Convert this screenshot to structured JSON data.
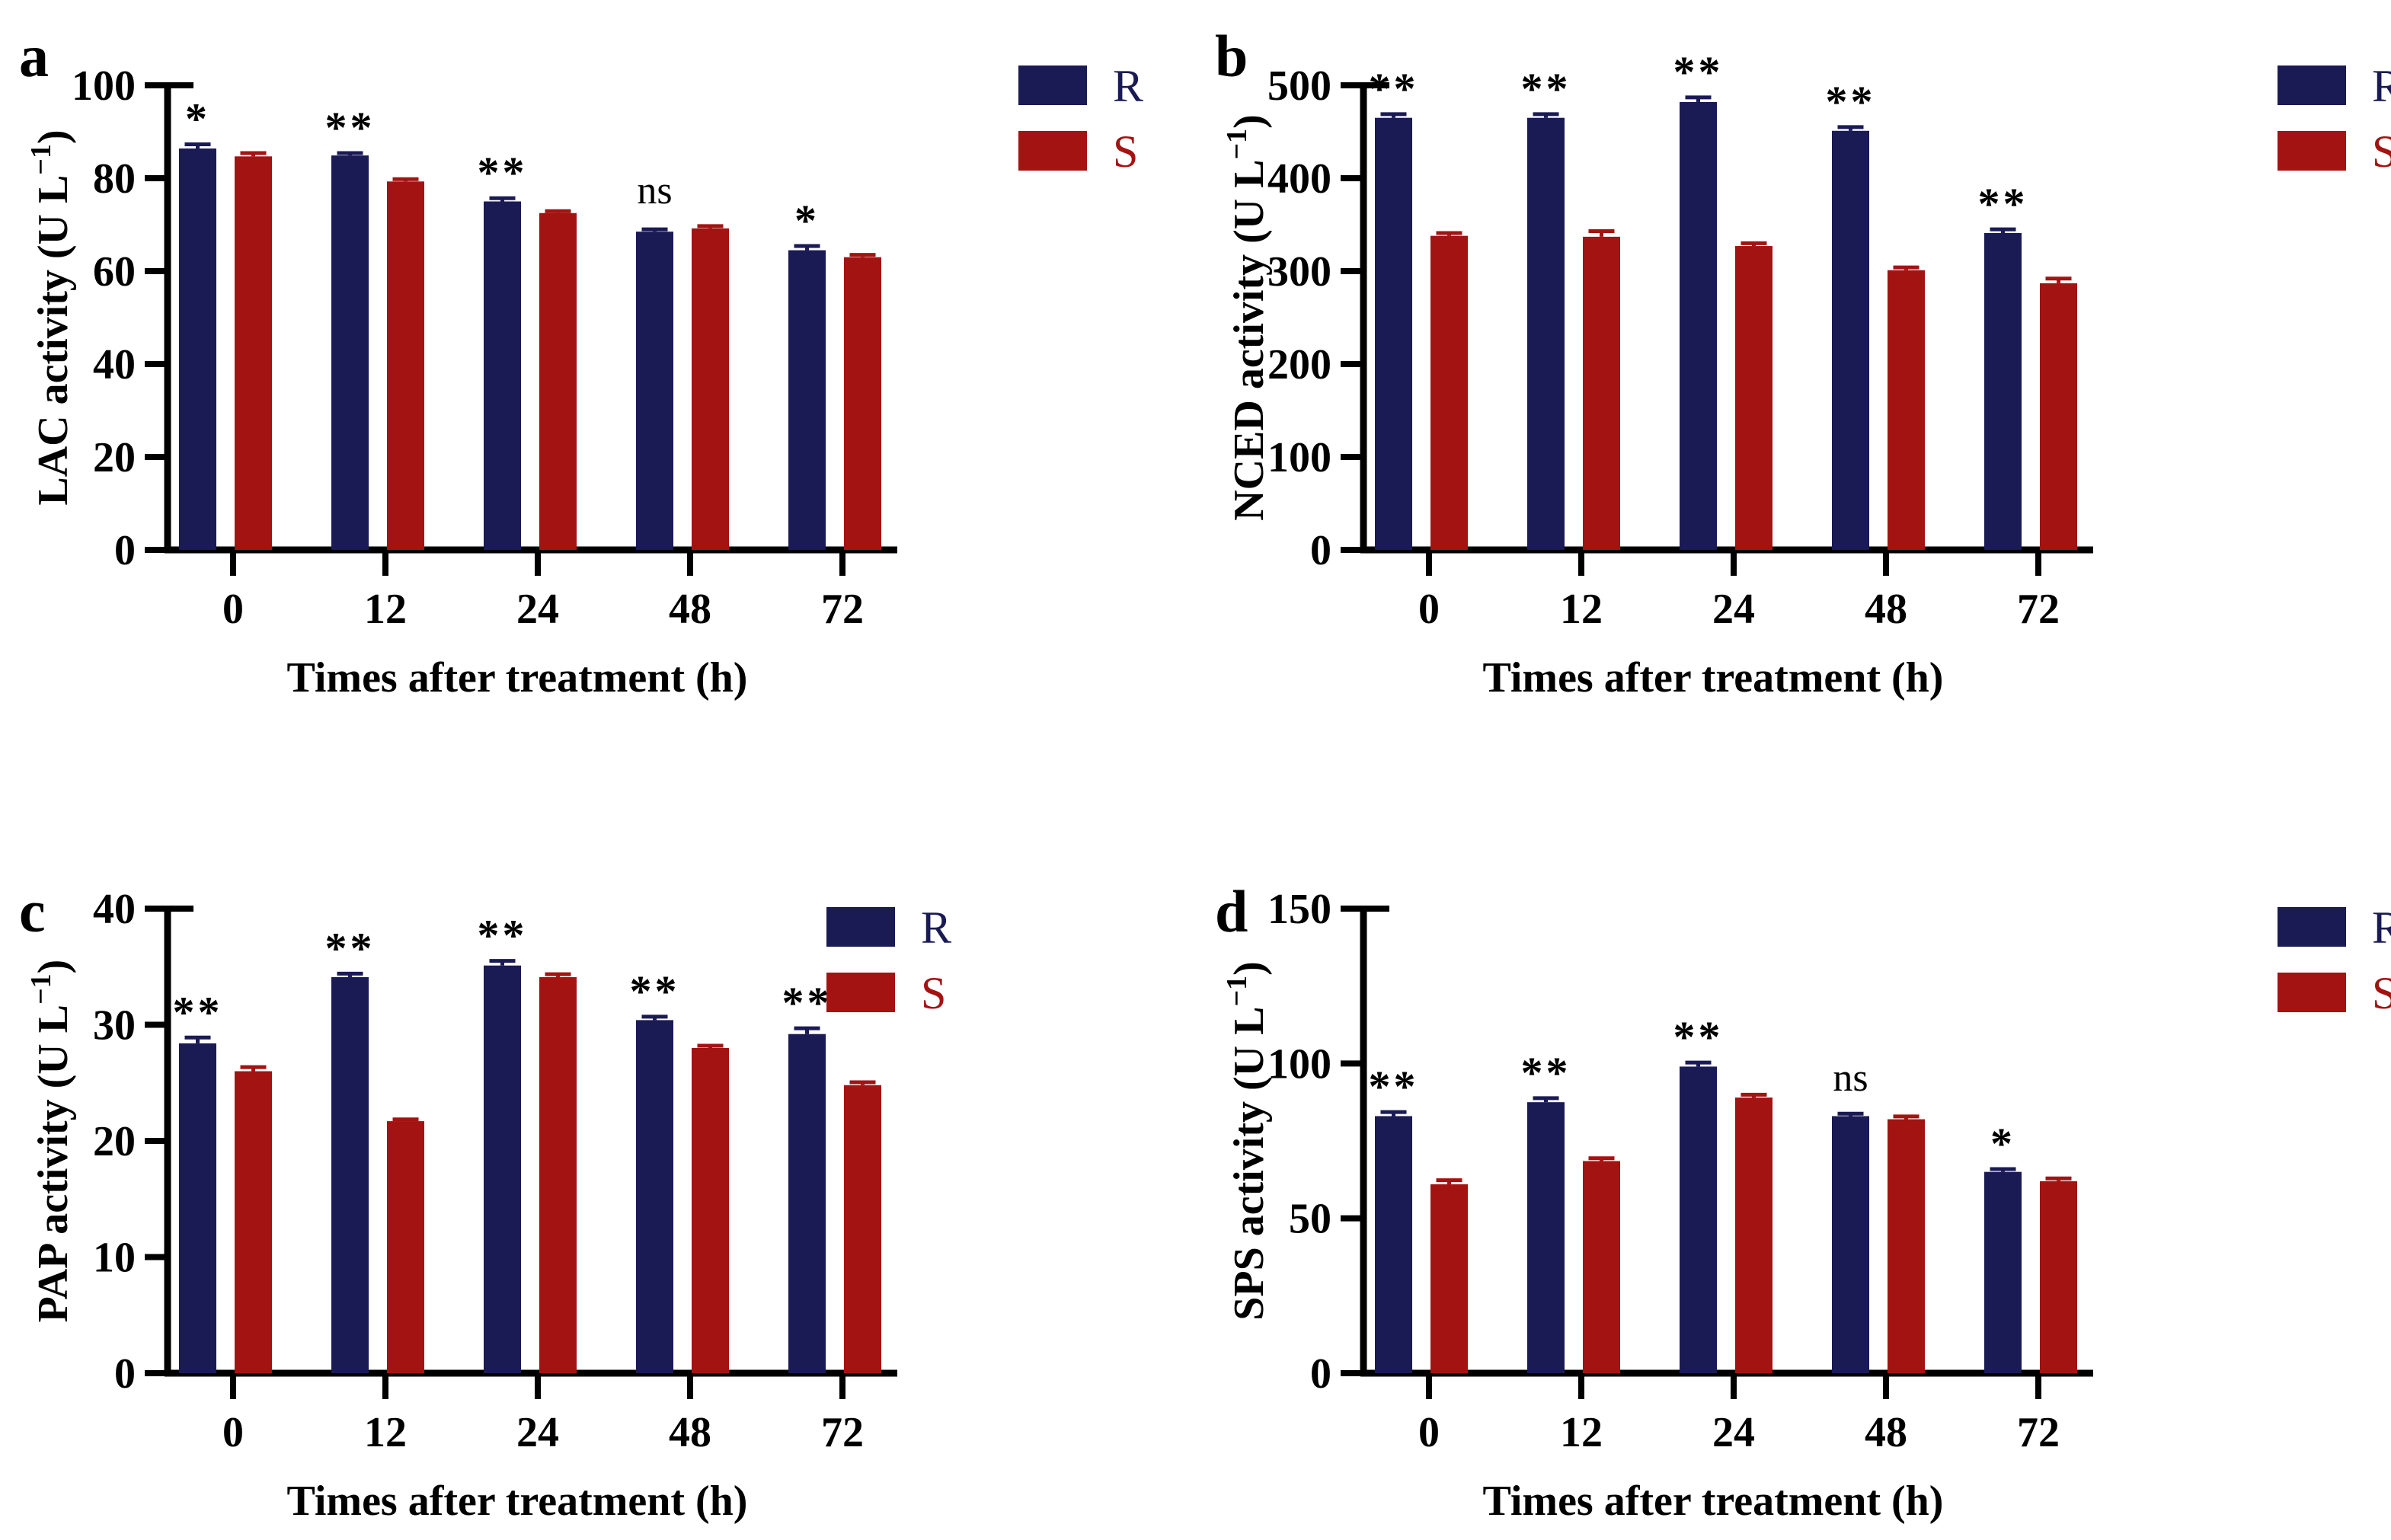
{
  "figure": {
    "background": "#ffffff",
    "xlabel": "Times after treatment (h)",
    "x_categories": [
      "0",
      "12",
      "24",
      "48",
      "72"
    ],
    "legend": [
      {
        "label": "R",
        "color": "#1A1A55"
      },
      {
        "label": "S",
        "color": "#A31312"
      }
    ],
    "colors": {
      "R": "#1A1A55",
      "S": "#A31312",
      "axis": "#000000",
      "text": "#000000"
    }
  },
  "chart_data": [
    {
      "panel": "a",
      "type": "bar",
      "ylabel": "LAC activity (U L⁻¹)",
      "xlabel": "Times after treatment (h)",
      "ylim": [
        0,
        100
      ],
      "yticks": [
        0,
        20,
        40,
        60,
        80,
        100
      ],
      "categories": [
        "0",
        "12",
        "24",
        "48",
        "72"
      ],
      "series": [
        {
          "name": "R",
          "color": "#1A1A55",
          "values": [
            86.4,
            84.9,
            75.0,
            68.5,
            64.5
          ],
          "errors": [
            0.9,
            0.5,
            0.7,
            0.5,
            0.9
          ]
        },
        {
          "name": "S",
          "color": "#A31312",
          "values": [
            84.7,
            79.3,
            72.5,
            69.2,
            63.0
          ],
          "errors": [
            0.7,
            0.5,
            0.4,
            0.5,
            0.5
          ]
        }
      ],
      "significance": [
        "*",
        "**",
        "**",
        "ns",
        "*"
      ],
      "legend_position": "right"
    },
    {
      "panel": "b",
      "type": "bar",
      "ylabel": "NCED activity (U L⁻¹)",
      "xlabel": "Times after treatment (h)",
      "ylim": [
        0,
        500
      ],
      "yticks": [
        0,
        100,
        200,
        300,
        400,
        500
      ],
      "categories": [
        "0",
        "12",
        "24",
        "48",
        "72"
      ],
      "series": [
        {
          "name": "R",
          "color": "#1A1A55",
          "values": [
            465,
            465,
            482,
            451,
            341
          ],
          "errors": [
            4,
            4,
            5,
            4,
            4
          ]
        },
        {
          "name": "S",
          "color": "#A31312",
          "values": [
            338,
            337,
            327,
            301,
            287
          ],
          "errors": [
            3,
            6,
            3,
            3,
            5
          ]
        }
      ],
      "significance": [
        "**",
        "**",
        "**",
        "**",
        "**"
      ],
      "legend_position": "right"
    },
    {
      "panel": "c",
      "type": "bar",
      "ylabel": "PAP activity (U L⁻¹)",
      "xlabel": "Times after treatment (h)",
      "ylim": [
        0,
        40
      ],
      "yticks": [
        0,
        10,
        20,
        30,
        40
      ],
      "categories": [
        "0",
        "12",
        "24",
        "48",
        "72"
      ],
      "series": [
        {
          "name": "R",
          "color": "#1A1A55",
          "values": [
            28.4,
            34.1,
            35.1,
            30.4,
            29.2
          ],
          "errors": [
            0.5,
            0.3,
            0.4,
            0.3,
            0.5
          ]
        },
        {
          "name": "S",
          "color": "#A31312",
          "values": [
            26.0,
            21.7,
            34.1,
            28.0,
            24.8
          ],
          "errors": [
            0.35,
            0.15,
            0.25,
            0.2,
            0.25
          ]
        }
      ],
      "significance": [
        "**",
        "**",
        "**",
        "**",
        "**"
      ],
      "legend_position": "right"
    },
    {
      "panel": "d",
      "type": "bar",
      "ylabel": "SPS activity (U L⁻¹)",
      "xlabel": "Times after treatment (h)",
      "ylim": [
        0,
        150
      ],
      "yticks": [
        0,
        50,
        100,
        150
      ],
      "categories": [
        "0",
        "12",
        "24",
        "48",
        "72"
      ],
      "series": [
        {
          "name": "R",
          "color": "#1A1A55",
          "values": [
            83,
            87.5,
            99,
            83,
            65
          ],
          "errors": [
            1.3,
            1.3,
            1.3,
            0.8,
            0.9
          ]
        },
        {
          "name": "S",
          "color": "#A31312",
          "values": [
            61,
            68.5,
            89,
            82,
            62
          ],
          "errors": [
            1.3,
            0.9,
            0.9,
            0.9,
            0.9
          ]
        }
      ],
      "significance": [
        "**",
        "**",
        "**",
        "ns",
        "*"
      ],
      "legend_position": "right"
    }
  ]
}
